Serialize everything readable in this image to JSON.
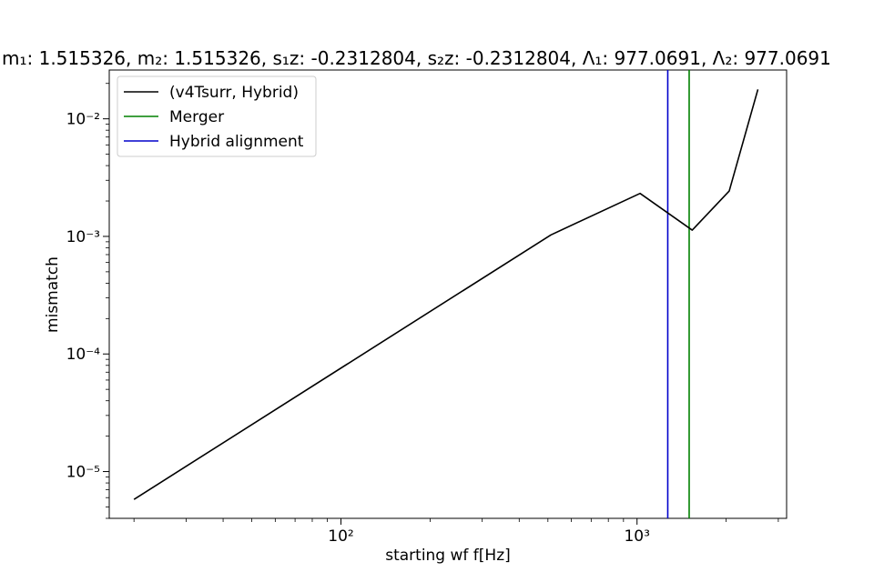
{
  "chart_data": {
    "type": "line",
    "title": "m₁: 1.515326, m₂: 1.515326, s₁z: -0.2312804, s₂z: -0.2312804, Λ₁: 977.0691, Λ₂: 977.0691",
    "xlabel": "starting wf f[Hz]",
    "ylabel": "mismatch",
    "xscale": "log",
    "yscale": "log",
    "xlim": [
      16.5,
      3200
    ],
    "ylim": [
      4e-06,
      0.026
    ],
    "x_ticks": [
      {
        "value": 100,
        "label": "10²"
      },
      {
        "value": 1000,
        "label": "10³"
      }
    ],
    "y_ticks": [
      {
        "value": 1e-05,
        "label": "10⁻⁵"
      },
      {
        "value": 0.0001,
        "label": "10⁻⁴"
      },
      {
        "value": 0.001,
        "label": "10⁻³"
      },
      {
        "value": 0.01,
        "label": "10⁻²"
      }
    ],
    "series": [
      {
        "name": "(v4Tsurr, Hybrid)",
        "color": "#000000",
        "x": [
          20,
          512,
          1024,
          1536,
          2048,
          2560
        ],
        "y": [
          5.8e-06,
          0.00103,
          0.00232,
          0.00113,
          0.00243,
          0.0178
        ]
      }
    ],
    "vlines": [
      {
        "name": "Merger",
        "x": 1500,
        "color": "#008000"
      },
      {
        "name": "Hybrid alignment",
        "x": 1270,
        "color": "#0000cc"
      }
    ],
    "legend_position": "upper-left",
    "grid": false
  }
}
